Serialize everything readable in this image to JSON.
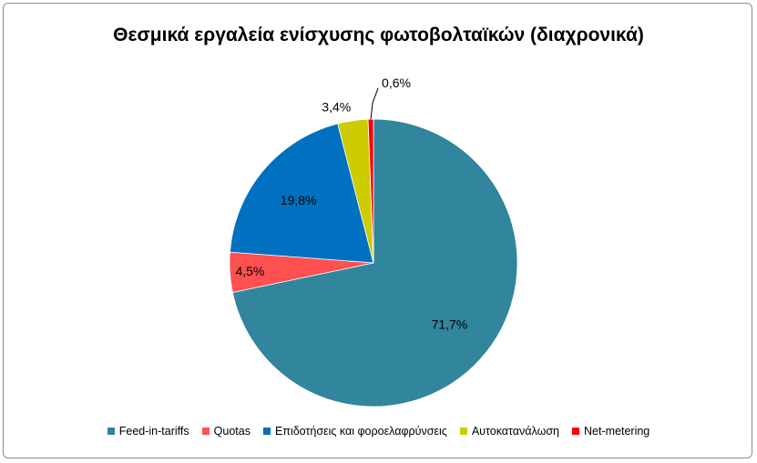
{
  "chart_data": {
    "type": "pie",
    "title": "Θεσμικά εργαλεία ενίσχυσης φωτοβολταϊκών (διαχρονικά)",
    "series": [
      {
        "name": "Feed-in-tariffs",
        "value": 71.7,
        "label": "71,7%",
        "color": "#31859C"
      },
      {
        "name": "Quotas",
        "value": 4.5,
        "label": "4,5%",
        "color": "#FF5050"
      },
      {
        "name": "Επιδοτήσεις και φοροελαφρύνσεις",
        "value": 19.8,
        "label": "19,8%",
        "color": "#0070C0"
      },
      {
        "name": "Αυτοκατανάλωση",
        "value": 3.4,
        "label": "3,4%",
        "color": "#CCCC00"
      },
      {
        "name": "Net-metering",
        "value": 0.6,
        "label": "0,6%",
        "color": "#FF0000"
      }
    ],
    "legend_position": "bottom"
  }
}
